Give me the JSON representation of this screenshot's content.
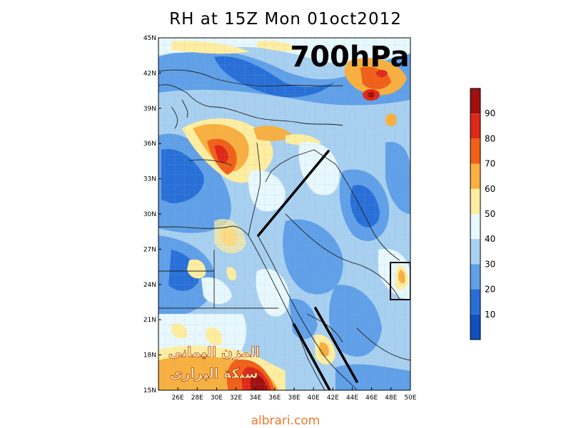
{
  "title": "RH at 15Z Mon 01oct2012",
  "level_label": "700hPa",
  "watermark": {
    "line1": "المزن اليمانى",
    "line2": "شبكة البرارى"
  },
  "footer": "albrari.com",
  "map": {
    "lon_range": [
      24,
      50
    ],
    "lat_range": [
      15,
      45
    ],
    "lat_ticks": [
      "45N",
      "42N",
      "39N",
      "36N",
      "33N",
      "30N",
      "27N",
      "24N",
      "21N",
      "18N",
      "15N"
    ],
    "lon_ticks": [
      "26E",
      "28E",
      "30E",
      "32E",
      "34E",
      "36E",
      "38E",
      "40E",
      "42E",
      "44E",
      "46E",
      "48E",
      "50E"
    ]
  },
  "legend": {
    "labels": [
      "90",
      "80",
      "70",
      "60",
      "50",
      "40",
      "30",
      "20",
      "10"
    ],
    "colors": [
      "#a01010",
      "#e02818",
      "#f06018",
      "#f8b040",
      "#ffeea0",
      "#e8f8ff",
      "#a8d0f0",
      "#60a0e8",
      "#2870d8",
      "#1050c0"
    ]
  }
}
